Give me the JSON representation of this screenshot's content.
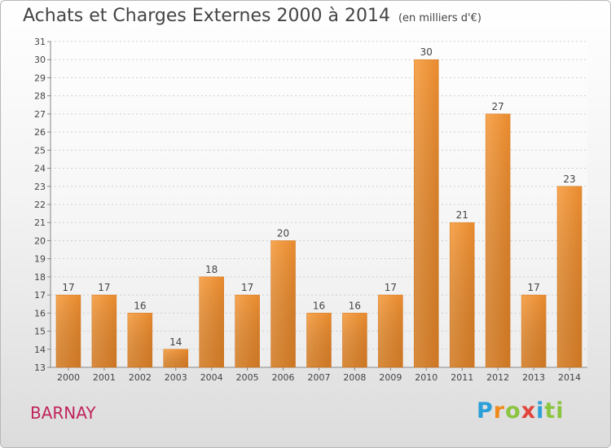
{
  "chart_data": {
    "type": "bar",
    "title": "Achats et Charges Externes 2000 à 2014",
    "subtitle": "(en milliers d'€)",
    "categories": [
      "2000",
      "2001",
      "2002",
      "2003",
      "2004",
      "2005",
      "2006",
      "2007",
      "2008",
      "2009",
      "2010",
      "2011",
      "2012",
      "2013",
      "2014"
    ],
    "values": [
      17,
      17,
      16,
      14,
      18,
      17,
      20,
      16,
      16,
      17,
      30,
      21,
      27,
      17,
      23
    ],
    "ylim": [
      13,
      31
    ],
    "yticks": [
      13,
      14,
      15,
      16,
      17,
      18,
      19,
      20,
      21,
      22,
      23,
      24,
      25,
      26,
      27,
      28,
      29,
      30,
      31
    ],
    "grid": true,
    "bar_color": "#f0943a"
  },
  "footer": {
    "location": "BARNAY",
    "logo": [
      "P",
      "r",
      "o",
      "x",
      "i",
      "ti"
    ]
  }
}
